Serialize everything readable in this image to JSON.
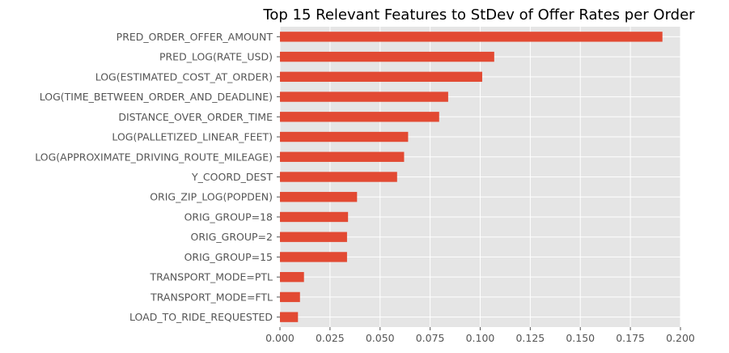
{
  "chart_data": {
    "type": "bar",
    "orientation": "horizontal",
    "title": "Top 15 Relevant Features to StDev of Offer Rates per Order",
    "xlabel": "",
    "ylabel": "",
    "xlim": [
      0,
      0.2
    ],
    "xticks": [
      "0.000",
      "0.025",
      "0.050",
      "0.075",
      "0.100",
      "0.125",
      "0.150",
      "0.175",
      "0.200"
    ],
    "grid": true,
    "bar_color": "#E24A33",
    "background_color": "#E5E5E5",
    "categories": [
      "PRED_ORDER_OFFER_AMOUNT",
      "PRED_LOG(RATE_USD)",
      "LOG(ESTIMATED_COST_AT_ORDER)",
      "LOG(TIME_BETWEEN_ORDER_AND_DEADLINE)",
      "DISTANCE_OVER_ORDER_TIME",
      "LOG(PALLETIZED_LINEAR_FEET)",
      "LOG(APPROXIMATE_DRIVING_ROUTE_MILEAGE)",
      "Y_COORD_DEST",
      "ORIG_ZIP_LOG(POPDEN)",
      "ORIG_GROUP=18",
      "ORIG_GROUP=2",
      "ORIG_GROUP=15",
      "TRANSPORT_MODE=PTL",
      "TRANSPORT_MODE=FTL",
      "LOAD_TO_RIDE_REQUESTED"
    ],
    "values": [
      0.191,
      0.107,
      0.101,
      0.084,
      0.0795,
      0.064,
      0.062,
      0.0585,
      0.0385,
      0.034,
      0.0335,
      0.0335,
      0.012,
      0.01,
      0.009
    ]
  }
}
